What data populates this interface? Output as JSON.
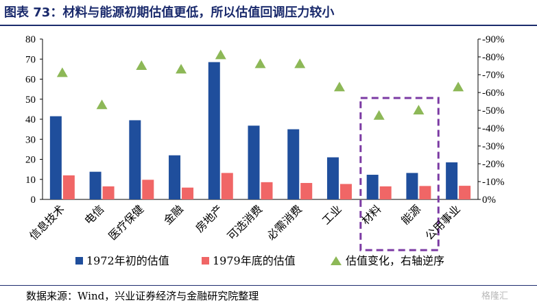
{
  "title": "图表 73：材料与能源初期估值更低，所以估值回调压力较小",
  "source": "数据来源：Wind，兴业证券经济与金融研究院整理",
  "watermark": "格隆汇",
  "colors": {
    "bar1": "#1f4e9c",
    "bar2": "#f06666",
    "marker": "#8db857",
    "highlight": "#7b3aa3",
    "title": "#1a2a6c"
  },
  "chart_data": {
    "type": "bar",
    "categories": [
      "信息技术",
      "电信",
      "医疗保健",
      "金融",
      "房地产",
      "可选消费",
      "必需消费",
      "工业",
      "材料",
      "能源",
      "公用事业"
    ],
    "series": [
      {
        "name": "1972年初的估值",
        "type": "bar",
        "axis": "left",
        "values": [
          41.5,
          13.8,
          39.5,
          22,
          68.5,
          36.8,
          35,
          21,
          12.3,
          13.2,
          18.5
        ]
      },
      {
        "name": "1979年底的估值",
        "type": "bar",
        "axis": "left",
        "values": [
          12,
          6.5,
          9.8,
          5.9,
          13.2,
          8.6,
          8.2,
          7.7,
          6.5,
          6.7,
          6.8
        ]
      },
      {
        "name": "估值变化，右轴逆序",
        "type": "scatter",
        "axis": "right",
        "values": [
          -71,
          -53,
          -75,
          -73,
          -81,
          -76,
          -76,
          -63,
          -47,
          -50,
          -63
        ]
      }
    ],
    "left_axis": {
      "min": 0,
      "max": 80,
      "ticks": [
        "0",
        "10",
        "20",
        "30",
        "40",
        "50",
        "60",
        "70",
        "80"
      ]
    },
    "right_axis": {
      "min": 0,
      "max": -90,
      "reversed": true,
      "ticks": [
        "0%",
        "-10%",
        "-20%",
        "-30%",
        "-40%",
        "-50%",
        "-60%",
        "-70%",
        "-80%",
        "-90%"
      ]
    },
    "highlight": {
      "categories": [
        "材料",
        "能源"
      ],
      "style": "dashed-box"
    },
    "legend_position": "bottom"
  }
}
